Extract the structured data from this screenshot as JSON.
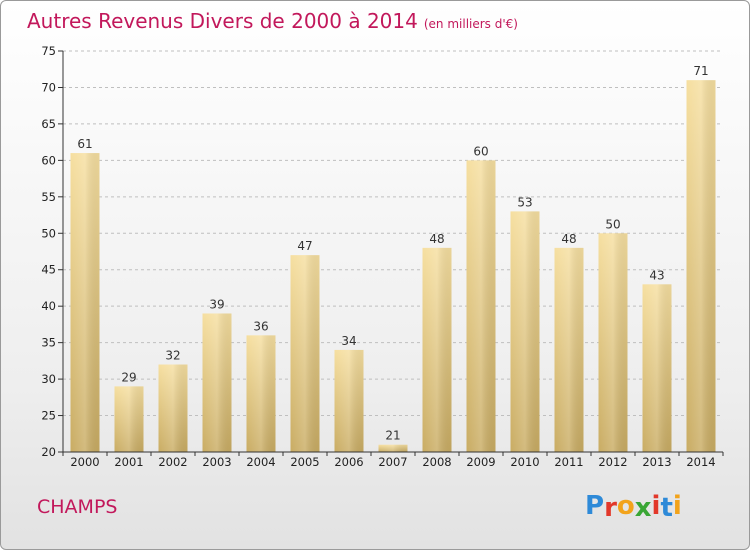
{
  "title": "Autres Revenus Divers de 2000 à 2014",
  "subtitle": "(en milliers d'€)",
  "commune": "CHAMPS",
  "logo": {
    "letters": [
      "P",
      "r",
      "o",
      "x",
      "i",
      "t",
      "i"
    ],
    "colors": [
      "#2e8ad8",
      "#e2382a",
      "#f2a31b",
      "#3aa635",
      "#e2382a",
      "#2e8ad8",
      "#f2a31b"
    ]
  },
  "colors": {
    "title": "#c2185b",
    "bar_light": "#f6dfa0",
    "bar_dark": "#c9ac63",
    "axis": "#333333",
    "grid": "#bfbfbf"
  },
  "chart_data": {
    "type": "bar",
    "title": "Autres Revenus Divers de 2000 à 2014",
    "subtitle": "(en milliers d'€)",
    "xlabel": "",
    "ylabel": "",
    "categories": [
      "2000",
      "2001",
      "2002",
      "2003",
      "2004",
      "2005",
      "2006",
      "2007",
      "2008",
      "2009",
      "2010",
      "2011",
      "2012",
      "2013",
      "2014"
    ],
    "values": [
      61,
      29,
      32,
      39,
      36,
      47,
      34,
      21,
      48,
      60,
      53,
      48,
      50,
      43,
      71
    ],
    "ylim": [
      20,
      75
    ],
    "yticks": [
      20,
      25,
      30,
      35,
      40,
      45,
      50,
      55,
      60,
      65,
      70,
      75
    ],
    "grid": "horizontal dashed",
    "legend": "none"
  }
}
